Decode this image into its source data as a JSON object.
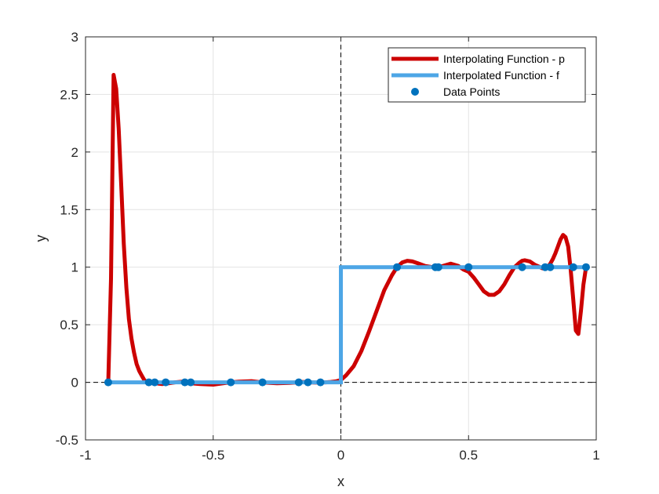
{
  "chart_data": {
    "type": "line",
    "title": "",
    "xlabel": "x",
    "ylabel": "y",
    "xlim": [
      -1,
      1
    ],
    "ylim": [
      -0.5,
      3
    ],
    "xticks": [
      -1,
      -0.5,
      0,
      0.5,
      1
    ],
    "xtick_labels": [
      "-1",
      "-0.5",
      "0",
      "0.5",
      "1"
    ],
    "yticks": [
      -0.5,
      0,
      0.5,
      1,
      1.5,
      2,
      2.5,
      3
    ],
    "ytick_labels": [
      "-0.5",
      "0",
      "0.5",
      "1",
      "1.5",
      "2",
      "2.5",
      "3"
    ],
    "grid": true,
    "legend_position": "top-right",
    "reference_lines": {
      "x": 0,
      "y": 0
    },
    "series": [
      {
        "name": "Interpolating Function - p",
        "kind": "line",
        "color": "#cc0000",
        "x": [
          -0.911,
          -0.9,
          -0.89,
          -0.88,
          -0.87,
          -0.86,
          -0.85,
          -0.84,
          -0.83,
          -0.82,
          -0.81,
          -0.8,
          -0.79,
          -0.78,
          -0.77,
          -0.76,
          -0.75,
          -0.74,
          -0.73,
          -0.72,
          -0.7,
          -0.68,
          -0.65,
          -0.62,
          -0.6,
          -0.58,
          -0.55,
          -0.5,
          -0.45,
          -0.43,
          -0.4,
          -0.35,
          -0.31,
          -0.28,
          -0.25,
          -0.2,
          -0.17,
          -0.15,
          -0.12,
          -0.1,
          -0.08,
          -0.06,
          -0.04,
          -0.02,
          0.0,
          0.02,
          0.05,
          0.08,
          0.11,
          0.14,
          0.17,
          0.2,
          0.22,
          0.24,
          0.26,
          0.28,
          0.3,
          0.33,
          0.36,
          0.37,
          0.38,
          0.4,
          0.43,
          0.46,
          0.48,
          0.5,
          0.52,
          0.54,
          0.56,
          0.58,
          0.6,
          0.62,
          0.64,
          0.66,
          0.68,
          0.7,
          0.71,
          0.72,
          0.74,
          0.76,
          0.78,
          0.79,
          0.8,
          0.81,
          0.82,
          0.83,
          0.84,
          0.85,
          0.86,
          0.87,
          0.88,
          0.89,
          0.9,
          0.91,
          0.92,
          0.93,
          0.94,
          0.95,
          0.96
        ],
        "y": [
          0.0,
          0.9,
          2.67,
          2.55,
          2.2,
          1.7,
          1.2,
          0.82,
          0.55,
          0.38,
          0.26,
          0.16,
          0.1,
          0.06,
          0.02,
          0.0,
          0.0,
          0.0,
          -0.005,
          -0.01,
          -0.015,
          -0.01,
          0.0,
          0.005,
          0.0,
          -0.01,
          -0.015,
          -0.02,
          -0.005,
          0.0,
          0.005,
          0.01,
          0.0,
          -0.005,
          -0.008,
          -0.005,
          0.0,
          0.003,
          0.0,
          -0.002,
          0.0,
          0.0,
          0.003,
          0.008,
          0.02,
          0.06,
          0.14,
          0.27,
          0.44,
          0.62,
          0.8,
          0.93,
          1.0,
          1.04,
          1.055,
          1.05,
          1.035,
          1.01,
          1.0,
          1.0,
          1.0,
          1.01,
          1.03,
          1.01,
          0.98,
          0.96,
          0.91,
          0.85,
          0.79,
          0.76,
          0.76,
          0.79,
          0.85,
          0.93,
          1.0,
          1.04,
          1.055,
          1.06,
          1.05,
          1.02,
          1.0,
          0.99,
          0.99,
          1.0,
          1.03,
          1.07,
          1.12,
          1.18,
          1.24,
          1.28,
          1.26,
          1.18,
          0.98,
          0.72,
          0.45,
          0.42,
          0.62,
          0.85,
          1.0
        ]
      },
      {
        "name": "Interpolated Function - f",
        "kind": "line",
        "color": "#4da6e6",
        "x": [
          -0.911,
          0.0,
          0.0,
          0.96
        ],
        "y": [
          0,
          0,
          1,
          1
        ]
      },
      {
        "name": "Data Points",
        "kind": "scatter",
        "color": "#0072bd",
        "x": [
          -0.911,
          -0.752,
          -0.729,
          -0.686,
          -0.611,
          -0.588,
          -0.431,
          -0.307,
          -0.165,
          -0.129,
          -0.08,
          0.22,
          0.37,
          0.382,
          0.5,
          0.71,
          0.8,
          0.82,
          0.91,
          0.96
        ],
        "y": [
          0,
          0,
          0,
          0,
          0,
          0,
          0,
          0,
          0,
          0,
          0,
          1,
          1,
          1,
          1,
          1,
          1,
          1,
          1,
          1
        ]
      }
    ]
  }
}
